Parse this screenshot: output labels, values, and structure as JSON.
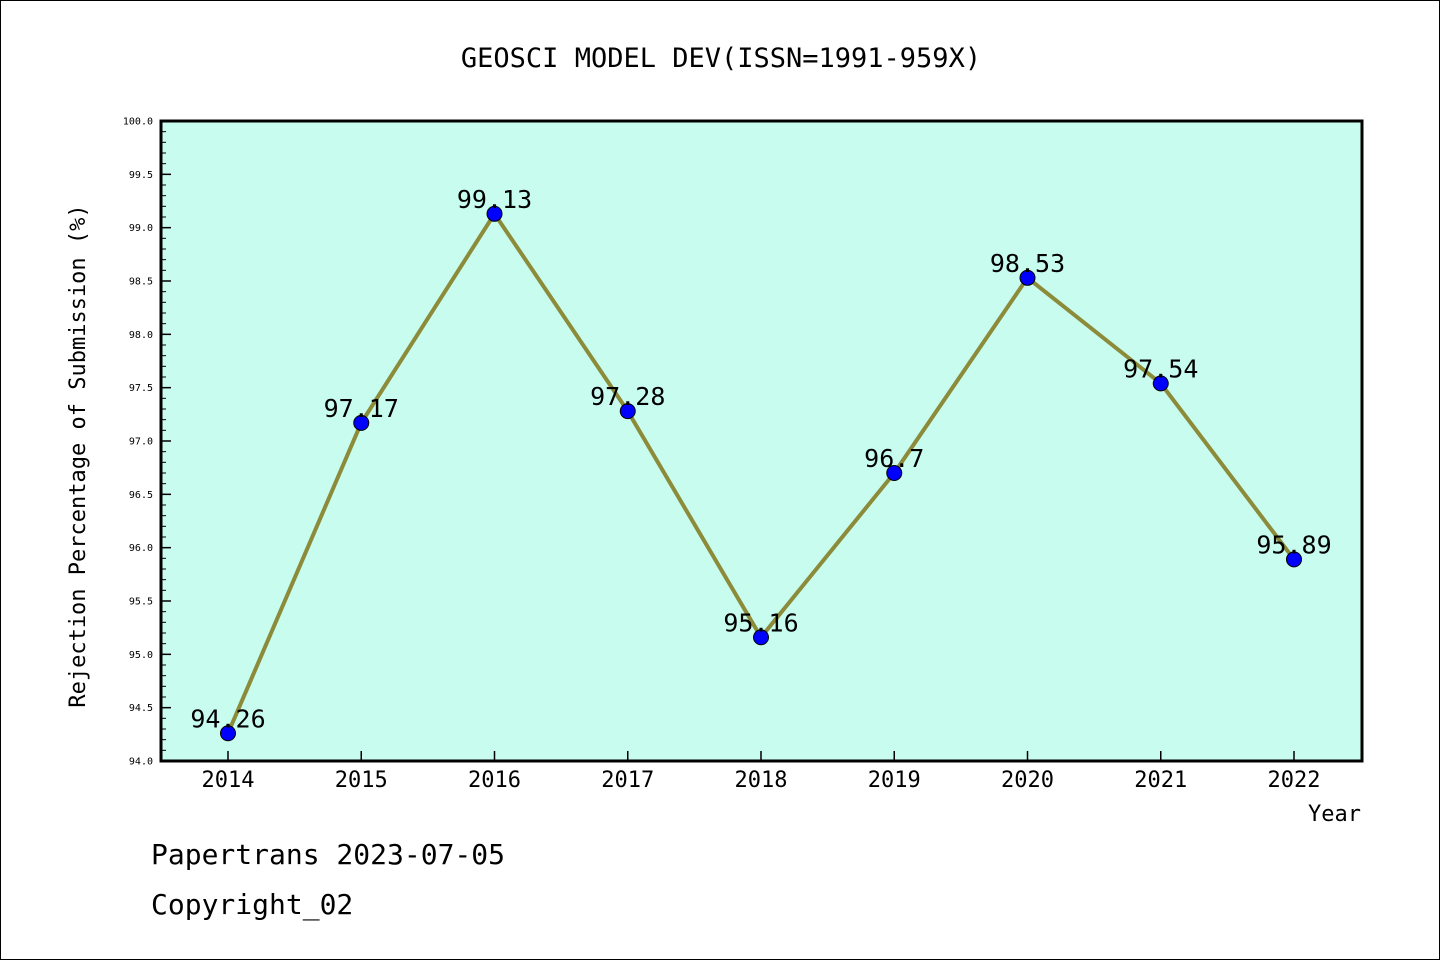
{
  "chart_data": {
    "type": "line",
    "title": "GEOSCI MODEL DEV(ISSN=1991-959X)",
    "xlabel": "Year",
    "ylabel": "Rejection Percentage of Submission (%)",
    "categories": [
      "2014",
      "2015",
      "2016",
      "2017",
      "2018",
      "2019",
      "2020",
      "2021",
      "2022"
    ],
    "series": [
      {
        "values": [
          94.26,
          97.17,
          99.13,
          97.28,
          95.16,
          96.7,
          98.53,
          97.54,
          95.89
        ],
        "data_labels": [
          "94.26",
          "97.17",
          "99.13",
          "97.28",
          "95.16",
          "96.7",
          "98.53",
          "97.54",
          "95.89"
        ]
      }
    ],
    "ylim": [
      94.0,
      100.0
    ],
    "yticks": [
      "94.0",
      "94.5",
      "95.0",
      "95.5",
      "96.0",
      "96.5",
      "97.0",
      "97.5",
      "98.0",
      "98.5",
      "99.0",
      "99.5",
      "100.0"
    ],
    "grid": false,
    "colors": {
      "plot_background": "#c8fcee",
      "line": "#8b8b3a",
      "marker": "#0000ff"
    }
  },
  "footer": {
    "line1": "Papertrans 2023-07-05",
    "line2": "Copyright_02"
  }
}
